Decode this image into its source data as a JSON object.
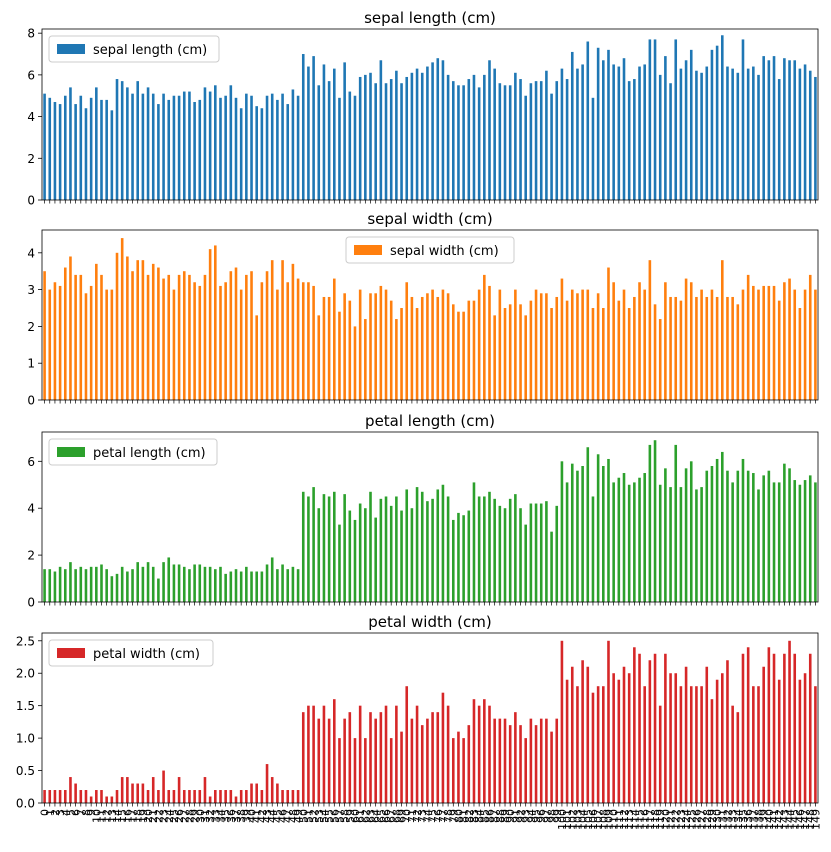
{
  "chart_data": [
    {
      "type": "bar",
      "title": "sepal length (cm)",
      "legend": "sepal length (cm)",
      "legend_loc": "upper left",
      "color": "#1f77b4",
      "ylim": [
        0,
        8.2
      ],
      "yticks": [
        0,
        2,
        4,
        6,
        8
      ],
      "ytick_labels": [
        "0",
        "2",
        "4",
        "6",
        "8"
      ],
      "values": [
        5.1,
        4.9,
        4.7,
        4.6,
        5.0,
        5.4,
        4.6,
        5.0,
        4.4,
        4.9,
        5.4,
        4.8,
        4.8,
        4.3,
        5.8,
        5.7,
        5.4,
        5.1,
        5.7,
        5.1,
        5.4,
        5.1,
        4.6,
        5.1,
        4.8,
        5.0,
        5.0,
        5.2,
        5.2,
        4.7,
        4.8,
        5.4,
        5.2,
        5.5,
        4.9,
        5.0,
        5.5,
        4.9,
        4.4,
        5.1,
        5.0,
        4.5,
        4.4,
        5.0,
        5.1,
        4.8,
        5.1,
        4.6,
        5.3,
        5.0,
        7.0,
        6.4,
        6.9,
        5.5,
        6.5,
        5.7,
        6.3,
        4.9,
        6.6,
        5.2,
        5.0,
        5.9,
        6.0,
        6.1,
        5.6,
        6.7,
        5.6,
        5.8,
        6.2,
        5.6,
        5.9,
        6.1,
        6.3,
        6.1,
        6.4,
        6.6,
        6.8,
        6.7,
        6.0,
        5.7,
        5.5,
        5.5,
        5.8,
        6.0,
        5.4,
        6.0,
        6.7,
        6.3,
        5.6,
        5.5,
        5.5,
        6.1,
        5.8,
        5.0,
        5.6,
        5.7,
        5.7,
        6.2,
        5.1,
        5.7,
        6.3,
        5.8,
        7.1,
        6.3,
        6.5,
        7.6,
        4.9,
        7.3,
        6.7,
        7.2,
        6.5,
        6.4,
        6.8,
        5.7,
        5.8,
        6.4,
        6.5,
        7.7,
        7.7,
        6.0,
        6.9,
        5.6,
        7.7,
        6.3,
        6.7,
        7.2,
        6.2,
        6.1,
        6.4,
        7.2,
        7.4,
        7.9,
        6.4,
        6.3,
        6.1,
        7.7,
        6.3,
        6.4,
        6.0,
        6.9,
        6.7,
        6.9,
        5.8,
        6.8,
        6.7,
        6.7,
        6.3,
        6.5,
        6.2,
        5.9
      ]
    },
    {
      "type": "bar",
      "title": "sepal width (cm)",
      "legend": "sepal width (cm)",
      "legend_loc": "upper center",
      "color": "#ff7f0e",
      "ylim": [
        0,
        4.62
      ],
      "yticks": [
        0,
        1,
        2,
        3,
        4
      ],
      "ytick_labels": [
        "0",
        "1",
        "2",
        "3",
        "4"
      ],
      "values": [
        3.5,
        3.0,
        3.2,
        3.1,
        3.6,
        3.9,
        3.4,
        3.4,
        2.9,
        3.1,
        3.7,
        3.4,
        3.0,
        3.0,
        4.0,
        4.4,
        3.9,
        3.5,
        3.8,
        3.8,
        3.4,
        3.7,
        3.6,
        3.3,
        3.4,
        3.0,
        3.4,
        3.5,
        3.4,
        3.2,
        3.1,
        3.4,
        4.1,
        4.2,
        3.1,
        3.2,
        3.5,
        3.6,
        3.0,
        3.4,
        3.5,
        2.3,
        3.2,
        3.5,
        3.8,
        3.0,
        3.8,
        3.2,
        3.7,
        3.3,
        3.2,
        3.2,
        3.1,
        2.3,
        2.8,
        2.8,
        3.3,
        2.4,
        2.9,
        2.7,
        2.0,
        3.0,
        2.2,
        2.9,
        2.9,
        3.1,
        3.0,
        2.7,
        2.2,
        2.5,
        3.2,
        2.8,
        2.5,
        2.8,
        2.9,
        3.0,
        2.8,
        3.0,
        2.9,
        2.6,
        2.4,
        2.4,
        2.7,
        2.7,
        3.0,
        3.4,
        3.1,
        2.3,
        3.0,
        2.5,
        2.6,
        3.0,
        2.6,
        2.3,
        2.7,
        3.0,
        2.9,
        2.9,
        2.5,
        2.8,
        3.3,
        2.7,
        3.0,
        2.9,
        3.0,
        3.0,
        2.5,
        2.9,
        2.5,
        3.6,
        3.2,
        2.7,
        3.0,
        2.5,
        2.8,
        3.2,
        3.0,
        3.8,
        2.6,
        2.2,
        3.2,
        2.8,
        2.8,
        2.7,
        3.3,
        3.2,
        2.8,
        3.0,
        2.8,
        3.0,
        2.8,
        3.8,
        2.8,
        2.8,
        2.6,
        3.0,
        3.4,
        3.1,
        3.0,
        3.1,
        3.1,
        3.1,
        2.7,
        3.2,
        3.3,
        3.0,
        2.5,
        3.0,
        3.4,
        3.0
      ]
    },
    {
      "type": "bar",
      "title": "petal length (cm)",
      "legend": "petal length (cm)",
      "legend_loc": "upper left",
      "color": "#2ca02c",
      "ylim": [
        0,
        7.25
      ],
      "yticks": [
        0,
        2,
        4,
        6
      ],
      "ytick_labels": [
        "0",
        "2",
        "4",
        "6"
      ],
      "values": [
        1.4,
        1.4,
        1.3,
        1.5,
        1.4,
        1.7,
        1.4,
        1.5,
        1.4,
        1.5,
        1.5,
        1.6,
        1.4,
        1.1,
        1.2,
        1.5,
        1.3,
        1.4,
        1.7,
        1.5,
        1.7,
        1.5,
        1.0,
        1.7,
        1.9,
        1.6,
        1.6,
        1.5,
        1.4,
        1.6,
        1.6,
        1.5,
        1.5,
        1.4,
        1.5,
        1.2,
        1.3,
        1.4,
        1.3,
        1.5,
        1.3,
        1.3,
        1.3,
        1.6,
        1.9,
        1.4,
        1.6,
        1.4,
        1.5,
        1.4,
        4.7,
        4.5,
        4.9,
        4.0,
        4.6,
        4.5,
        4.7,
        3.3,
        4.6,
        3.9,
        3.5,
        4.2,
        4.0,
        4.7,
        3.6,
        4.4,
        4.5,
        4.1,
        4.5,
        3.9,
        4.8,
        4.0,
        4.9,
        4.7,
        4.3,
        4.4,
        4.8,
        5.0,
        4.5,
        3.5,
        3.8,
        3.7,
        3.9,
        5.1,
        4.5,
        4.5,
        4.7,
        4.4,
        4.1,
        4.0,
        4.4,
        4.6,
        4.0,
        3.3,
        4.2,
        4.2,
        4.2,
        4.3,
        3.0,
        4.1,
        6.0,
        5.1,
        5.9,
        5.6,
        5.8,
        6.6,
        4.5,
        6.3,
        5.8,
        6.1,
        5.1,
        5.3,
        5.5,
        5.0,
        5.1,
        5.3,
        5.5,
        6.7,
        6.9,
        5.0,
        5.7,
        4.9,
        6.7,
        4.9,
        5.7,
        6.0,
        4.8,
        4.9,
        5.6,
        5.8,
        6.1,
        6.4,
        5.6,
        5.1,
        5.6,
        6.1,
        5.6,
        5.5,
        4.8,
        5.4,
        5.6,
        5.1,
        5.1,
        5.9,
        5.7,
        5.2,
        5.0,
        5.2,
        5.4,
        5.1
      ]
    },
    {
      "type": "bar",
      "title": "petal width (cm)",
      "legend": "petal width (cm)",
      "legend_loc": "upper left",
      "color": "#d62728",
      "ylim": [
        0,
        2.62
      ],
      "yticks": [
        0,
        0.5,
        1.0,
        1.5,
        2.0,
        2.5
      ],
      "ytick_labels": [
        "0.0",
        "0.5",
        "1.0",
        "1.5",
        "2.0",
        "2.5"
      ],
      "values": [
        0.2,
        0.2,
        0.2,
        0.2,
        0.2,
        0.4,
        0.3,
        0.2,
        0.2,
        0.1,
        0.2,
        0.2,
        0.1,
        0.1,
        0.2,
        0.4,
        0.4,
        0.3,
        0.3,
        0.3,
        0.2,
        0.4,
        0.2,
        0.5,
        0.2,
        0.2,
        0.4,
        0.2,
        0.2,
        0.2,
        0.2,
        0.4,
        0.1,
        0.2,
        0.2,
        0.2,
        0.2,
        0.1,
        0.2,
        0.2,
        0.3,
        0.3,
        0.2,
        0.6,
        0.4,
        0.3,
        0.2,
        0.2,
        0.2,
        0.2,
        1.4,
        1.5,
        1.5,
        1.3,
        1.5,
        1.3,
        1.6,
        1.0,
        1.3,
        1.4,
        1.0,
        1.5,
        1.0,
        1.4,
        1.3,
        1.4,
        1.5,
        1.0,
        1.5,
        1.1,
        1.8,
        1.3,
        1.5,
        1.2,
        1.3,
        1.4,
        1.4,
        1.7,
        1.5,
        1.0,
        1.1,
        1.0,
        1.2,
        1.6,
        1.5,
        1.6,
        1.5,
        1.3,
        1.3,
        1.3,
        1.2,
        1.4,
        1.2,
        1.0,
        1.3,
        1.2,
        1.3,
        1.3,
        1.1,
        1.3,
        2.5,
        1.9,
        2.1,
        1.8,
        2.2,
        2.1,
        1.7,
        1.8,
        1.8,
        2.5,
        2.0,
        1.9,
        2.1,
        2.0,
        2.4,
        2.3,
        1.8,
        2.2,
        2.3,
        1.5,
        2.3,
        2.0,
        2.0,
        1.8,
        2.1,
        1.8,
        1.8,
        1.8,
        2.1,
        1.6,
        1.9,
        2.0,
        2.2,
        1.5,
        1.4,
        2.3,
        2.4,
        1.8,
        1.8,
        2.1,
        2.4,
        2.3,
        1.9,
        2.3,
        2.5,
        2.3,
        1.9,
        2.0,
        2.3,
        1.8
      ]
    }
  ],
  "x_tick_labels": [
    "0",
    "1",
    "2",
    "3",
    "4",
    "5",
    "6",
    "7",
    "8",
    "9",
    "10",
    "11",
    "12",
    "13",
    "14",
    "15",
    "16",
    "17",
    "18",
    "19",
    "20",
    "21",
    "22",
    "23",
    "24",
    "25",
    "26",
    "27",
    "28",
    "29",
    "30",
    "31",
    "32",
    "33",
    "34",
    "35",
    "36",
    "37",
    "38",
    "39",
    "40",
    "41",
    "42",
    "43",
    "44",
    "45",
    "46",
    "47",
    "48",
    "49",
    "50",
    "51",
    "52",
    "53",
    "54",
    "55",
    "56",
    "57",
    "58",
    "59",
    "60",
    "61",
    "62",
    "63",
    "64",
    "65",
    "66",
    "67",
    "68",
    "69",
    "70",
    "71",
    "72",
    "73",
    "74",
    "75",
    "76",
    "77",
    "78",
    "79",
    "80",
    "81",
    "82",
    "83",
    "84",
    "85",
    "86",
    "87",
    "88",
    "89",
    "90",
    "91",
    "92",
    "93",
    "94",
    "95",
    "96",
    "97",
    "98",
    "99",
    "100",
    "101",
    "102",
    "103",
    "104",
    "105",
    "106",
    "107",
    "108",
    "109",
    "110",
    "111",
    "112",
    "113",
    "114",
    "115",
    "116",
    "117",
    "118",
    "119",
    "120",
    "121",
    "122",
    "123",
    "124",
    "125",
    "126",
    "127",
    "128",
    "129",
    "130",
    "131",
    "132",
    "133",
    "134",
    "135",
    "136",
    "137",
    "138",
    "139",
    "140",
    "141",
    "142",
    "143",
    "144",
    "145",
    "146",
    "147",
    "148",
    "149"
  ]
}
